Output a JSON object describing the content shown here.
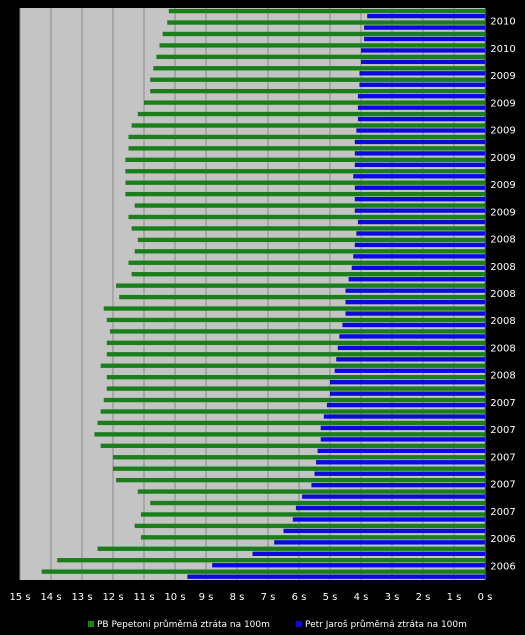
{
  "chart_data": {
    "type": "bar",
    "orientation": "horizontal",
    "x_direction": "reversed",
    "xlim": [
      0,
      15
    ],
    "x_ticks": [
      "15 s",
      "14 s",
      "13 s",
      "12 s",
      "11 s",
      "10 s",
      "9 s",
      "8 s",
      "7 s",
      "6 s",
      "5 s",
      "4 s",
      "3 s",
      "2 s",
      "1 s",
      "0 s"
    ],
    "grid": true,
    "legend_position": "bottom",
    "category_labels_visible": [
      "2010",
      "2010",
      "2009",
      "2009",
      "2009",
      "2009",
      "2009",
      "2009",
      "2008",
      "2008",
      "2008",
      "2008",
      "2008",
      "2008",
      "2007",
      "2007",
      "2007",
      "2007",
      "2007",
      "2006",
      "2006"
    ],
    "series": [
      {
        "name": "PB Pepetoni průměrná ztráta na 100m",
        "color": "#1a7f1a",
        "values": [
          10.2,
          10.25,
          10.4,
          10.5,
          10.6,
          10.7,
          10.8,
          10.8,
          11.0,
          11.2,
          11.4,
          11.5,
          11.5,
          11.6,
          11.6,
          11.6,
          11.6,
          11.3,
          11.5,
          11.4,
          11.2,
          11.3,
          11.5,
          11.4,
          11.9,
          11.8,
          12.3,
          12.2,
          12.1,
          12.2,
          12.2,
          12.4,
          12.2,
          12.2,
          12.3,
          12.4,
          12.5,
          12.6,
          12.4,
          12.0,
          12.0,
          11.9,
          11.2,
          10.8,
          11.1,
          11.3,
          11.1,
          12.5,
          13.8,
          14.3
        ]
      },
      {
        "name": "Petr Jaroš průměrná ztráta na 100m",
        "color": "#0a0ae0",
        "values": [
          3.8,
          3.9,
          3.9,
          4.0,
          4.0,
          4.05,
          4.05,
          4.1,
          4.1,
          4.1,
          4.15,
          4.2,
          4.2,
          4.2,
          4.25,
          4.2,
          4.2,
          4.2,
          4.1,
          4.15,
          4.2,
          4.25,
          4.3,
          4.4,
          4.5,
          4.5,
          4.5,
          4.6,
          4.7,
          4.75,
          4.8,
          4.85,
          5.0,
          5.0,
          5.1,
          5.2,
          5.3,
          5.3,
          5.4,
          5.45,
          5.5,
          5.6,
          5.9,
          6.1,
          6.2,
          6.5,
          6.8,
          7.5,
          8.8,
          9.6
        ]
      }
    ]
  }
}
